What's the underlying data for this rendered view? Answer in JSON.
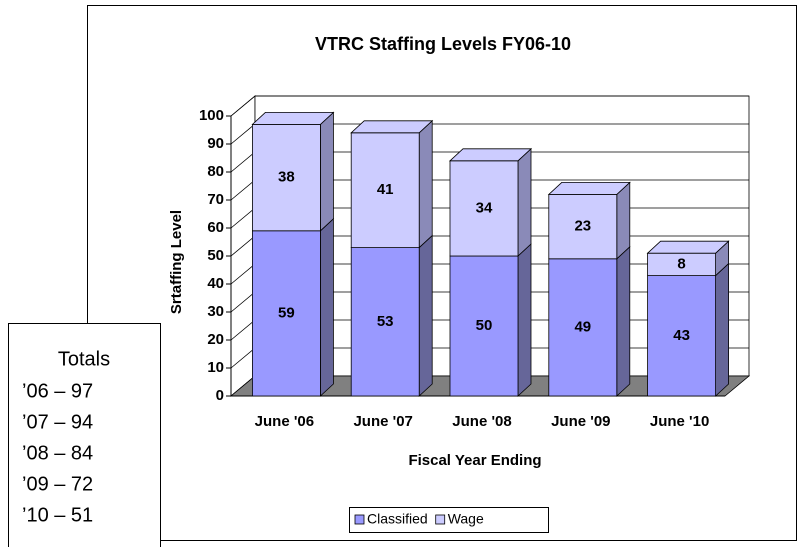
{
  "chart_data": {
    "type": "bar",
    "stacked": true,
    "title": "VTRC Staffing Levels FY06-10",
    "y_label": "Srtaffing Level",
    "x_label": "Fiscal Year Ending",
    "categories": [
      "June '06",
      "June '07",
      "June '08",
      "June '09",
      "June '10"
    ],
    "series": [
      {
        "name": "Classified",
        "color": "#9999ff",
        "side": "#666699",
        "values": [
          59,
          53,
          50,
          49,
          43
        ]
      },
      {
        "name": "Wage",
        "color": "#ccccff",
        "side": "#8a8ab8",
        "values": [
          38,
          41,
          34,
          23,
          8
        ]
      }
    ],
    "ylim": [
      0,
      100
    ],
    "yticks": [
      0,
      10,
      20,
      30,
      40,
      50,
      60,
      70,
      80,
      90,
      100
    ],
    "grid": true,
    "legend": "bottom"
  },
  "totals_box": {
    "title": "Totals",
    "lines": [
      "’06 – 97",
      "’07 – 94",
      "’08 – 84",
      "’09 – 72",
      "’10 – 51"
    ]
  }
}
